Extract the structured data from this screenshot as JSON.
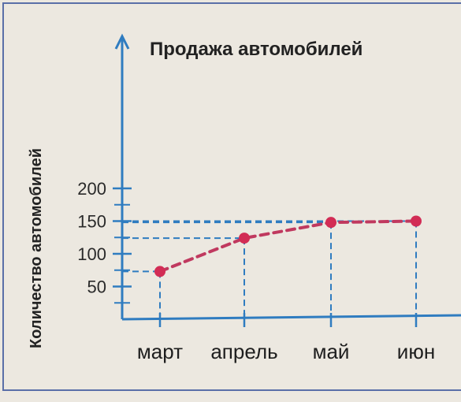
{
  "chart_data": {
    "type": "line",
    "title": "Продажа автомобилей",
    "ylabel": "Количество автомобилей",
    "xlabel": "",
    "categories": [
      "март",
      "апрель",
      "май",
      "июн"
    ],
    "values": [
      73,
      124,
      148,
      150
    ],
    "ylim": [
      0,
      200
    ],
    "yticks": [
      50,
      100,
      150,
      200
    ],
    "yminor": [
      25,
      75,
      125,
      175
    ],
    "grid": false,
    "legend": "none"
  },
  "colors": {
    "axis": "#2f7cc0",
    "line": "#c0395f",
    "marker": "#d22c55",
    "guide": "#2f7cc0",
    "background": "#ece8e0",
    "frame": "#5a6fa8"
  }
}
